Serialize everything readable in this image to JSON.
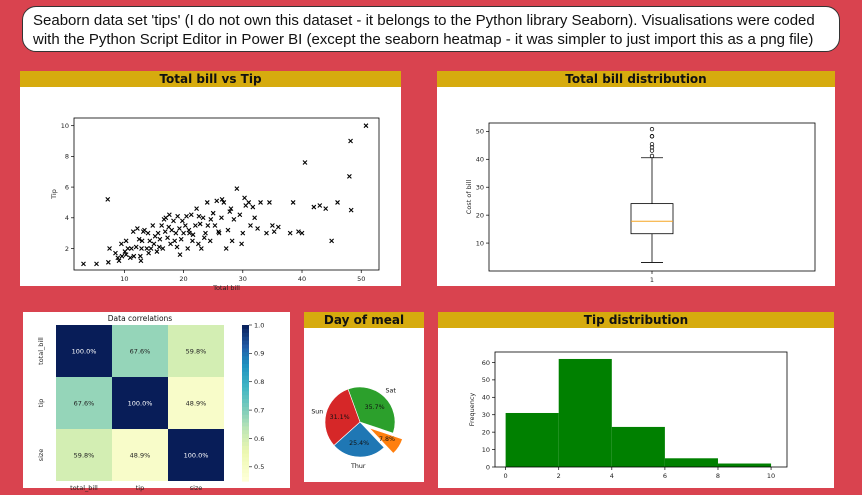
{
  "note": {
    "text": "Seaborn data set 'tips' (I do not own this dataset - it belongs to the Python library Seaborn). Visualisations were coded with the Python Script Editor in Power BI (except the seaborn heatmap - it was simpler to just import this as a png file)"
  },
  "panels": {
    "scatter_title": "Total bill vs Tip",
    "box_title": "Total bill distribution",
    "pie_title": "Day of meal",
    "hist_title": "Tip distribution"
  },
  "colors": {
    "background": "#d9434f",
    "panel_header": "#d6ab0e",
    "hist_bar": "#008000",
    "box_median": "#f5a623",
    "pie_sat": "#2ca02c",
    "pie_fri": "#ff7f0e",
    "pie_thur": "#1f77b4",
    "pie_sun": "#d62728"
  },
  "chart_data": [
    {
      "type": "scatter",
      "title": "Total bill vs Tip",
      "xlabel": "Total bill",
      "ylabel": "Tip",
      "xlim": [
        1.5,
        53
      ],
      "ylim": [
        0.6,
        10.5
      ],
      "xticks": [
        10,
        20,
        30,
        40,
        50
      ],
      "yticks": [
        2,
        4,
        6,
        8,
        10
      ],
      "marker": "x",
      "points": [
        [
          3.1,
          1
        ],
        [
          5.3,
          1
        ],
        [
          7.3,
          1.1
        ],
        [
          7.5,
          2
        ],
        [
          8.5,
          1.7
        ],
        [
          9.6,
          1.5
        ],
        [
          10.1,
          1.8
        ],
        [
          10.3,
          1.6
        ],
        [
          10.6,
          2
        ],
        [
          10.3,
          2.5
        ],
        [
          11,
          1.4
        ],
        [
          11.2,
          2
        ],
        [
          11.6,
          1.5
        ],
        [
          12,
          2.1
        ],
        [
          12.5,
          2.6
        ],
        [
          12.7,
          1.5
        ],
        [
          12.9,
          2
        ],
        [
          13,
          2.5
        ],
        [
          13.4,
          3.2
        ],
        [
          13.8,
          2
        ],
        [
          14,
          3
        ],
        [
          14.3,
          2.5
        ],
        [
          14.5,
          2
        ],
        [
          14.8,
          3.5
        ],
        [
          15,
          2.3
        ],
        [
          15.2,
          2.8
        ],
        [
          15.5,
          1.8
        ],
        [
          15.7,
          3
        ],
        [
          16,
          2.6
        ],
        [
          16.3,
          3.5
        ],
        [
          16.5,
          2
        ],
        [
          16.9,
          3.1
        ],
        [
          17,
          4
        ],
        [
          17.3,
          2.7
        ],
        [
          17.5,
          3.4
        ],
        [
          17.8,
          2.3
        ],
        [
          18,
          3.2
        ],
        [
          18.3,
          3.8
        ],
        [
          18.5,
          2.5
        ],
        [
          18.7,
          3
        ],
        [
          19,
          4.1
        ],
        [
          19.3,
          3.3
        ],
        [
          19.6,
          2.6
        ],
        [
          19.8,
          3.8
        ],
        [
          20,
          3
        ],
        [
          20.3,
          3.5
        ],
        [
          20.5,
          4.1
        ],
        [
          20.7,
          2
        ],
        [
          21,
          3
        ],
        [
          21.3,
          4.2
        ],
        [
          21.5,
          2.5
        ],
        [
          22,
          3.5
        ],
        [
          22.2,
          4.6
        ],
        [
          22.5,
          2.3
        ],
        [
          22.8,
          3.6
        ],
        [
          23,
          2
        ],
        [
          23.3,
          4
        ],
        [
          23.7,
          3
        ],
        [
          24,
          5
        ],
        [
          24.1,
          3.5
        ],
        [
          24.5,
          2.5
        ],
        [
          25,
          4.3
        ],
        [
          25.3,
          3.5
        ],
        [
          25.6,
          5.1
        ],
        [
          26,
          3
        ],
        [
          26.4,
          4
        ],
        [
          26.8,
          5
        ],
        [
          27.2,
          2
        ],
        [
          27.5,
          3.2
        ],
        [
          28,
          4.6
        ],
        [
          28.2,
          2.5
        ],
        [
          28.5,
          3.9
        ],
        [
          29,
          5.9
        ],
        [
          29.5,
          4.2
        ],
        [
          29.8,
          2.3
        ],
        [
          30,
          3
        ],
        [
          30.5,
          4.8
        ],
        [
          31,
          5
        ],
        [
          31.3,
          3.5
        ],
        [
          32,
          4
        ],
        [
          32.5,
          3.3
        ],
        [
          33,
          5
        ],
        [
          34,
          3
        ],
        [
          35,
          3.5
        ],
        [
          38,
          3
        ],
        [
          40,
          3
        ],
        [
          40.5,
          7.6
        ],
        [
          43,
          4.8
        ],
        [
          44,
          4.6
        ],
        [
          45,
          2.5
        ],
        [
          46,
          5
        ],
        [
          48,
          6.7
        ],
        [
          48.2,
          9
        ],
        [
          48.3,
          4.5
        ],
        [
          50.8,
          10
        ],
        [
          7.2,
          5.2
        ],
        [
          11.5,
          3.1
        ],
        [
          9.5,
          2.3
        ],
        [
          12.2,
          3.3
        ],
        [
          13.2,
          3.1
        ],
        [
          15.9,
          2.1
        ],
        [
          16.7,
          3.9
        ],
        [
          17.6,
          4.2
        ],
        [
          18.9,
          2.1
        ],
        [
          20.9,
          3.2
        ],
        [
          21.6,
          2.9
        ],
        [
          22.6,
          4.1
        ],
        [
          23.5,
          2.7
        ],
        [
          24.6,
          3.9
        ],
        [
          26.5,
          5.2
        ],
        [
          27.8,
          4.4
        ],
        [
          30.3,
          5.3
        ],
        [
          31.7,
          4.7
        ],
        [
          34.5,
          5
        ],
        [
          36,
          3.4
        ],
        [
          38.5,
          5
        ],
        [
          42,
          4.7
        ],
        [
          39.4,
          3.1
        ],
        [
          14.1,
          1.7
        ],
        [
          9.1,
          1.2
        ],
        [
          12.8,
          1.2
        ],
        [
          8.9,
          1.4
        ],
        [
          19.4,
          1.6
        ],
        [
          25.9,
          3.1
        ],
        [
          35.3,
          3.1
        ]
      ]
    },
    {
      "type": "box",
      "title": "Total bill distribution",
      "ylabel": "Cost of bill",
      "xticks": [
        "1"
      ],
      "ylim": [
        0,
        53
      ],
      "yticks": [
        10,
        20,
        30,
        40,
        50
      ],
      "stats": {
        "whisker_low": 3.07,
        "q1": 13.35,
        "median": 17.8,
        "q3": 24.13,
        "whisker_high": 40.55
      },
      "outliers": [
        41.2,
        43.1,
        44.3,
        45.4,
        48.2,
        48.3,
        50.8
      ]
    },
    {
      "type": "heatmap",
      "title": "Data correlations",
      "labels": [
        "total_bill",
        "tip",
        "size"
      ],
      "values": [
        [
          "100.0%",
          "67.6%",
          "59.8%"
        ],
        [
          "67.6%",
          "100.0%",
          "48.9%"
        ],
        [
          "59.8%",
          "48.9%",
          "100.0%"
        ]
      ],
      "matrix": [
        [
          1.0,
          0.676,
          0.598
        ],
        [
          0.676,
          1.0,
          0.489
        ],
        [
          0.598,
          0.489,
          1.0
        ]
      ],
      "colorbar_ticks": [
        "0.5",
        "0.6",
        "0.7",
        "0.8",
        "0.9",
        "1.0"
      ],
      "colorbar_range": [
        0.45,
        1.0
      ]
    },
    {
      "type": "pie",
      "title": "Day of meal",
      "slices": [
        {
          "label": "Sat",
          "value": 35.7,
          "pct": "35.7%"
        },
        {
          "label": "",
          "value": 7.8,
          "pct": "7.8%"
        },
        {
          "label": "Thur",
          "value": 25.4,
          "pct": "25.4%"
        },
        {
          "label": "Sun",
          "value": 31.1,
          "pct": "31.1%"
        }
      ]
    },
    {
      "type": "bar",
      "title": "Tip distribution",
      "xlabel": "",
      "ylabel": "Frequency",
      "bins": [
        0,
        2,
        4,
        6,
        8,
        10
      ],
      "counts": [
        31,
        62,
        23,
        5,
        2
      ],
      "xlim": [
        -0.4,
        10.6
      ],
      "ylim": [
        0,
        66
      ],
      "xticks": [
        0,
        2,
        4,
        6,
        8,
        10
      ],
      "yticks": [
        0,
        10,
        20,
        30,
        40,
        50,
        60
      ]
    }
  ]
}
